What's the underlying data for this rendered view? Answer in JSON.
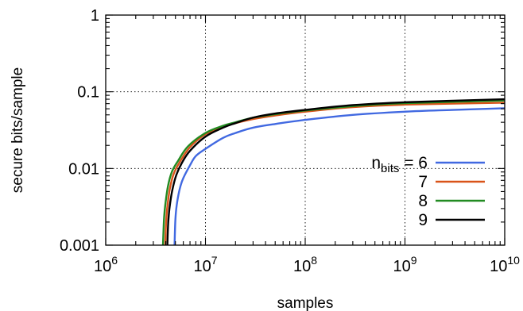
{
  "chart_data": {
    "type": "line",
    "title": "",
    "xlabel": "samples",
    "ylabel": "secure bits/sample",
    "xscale": "log",
    "yscale": "log",
    "xlim": [
      1000000,
      10000000000
    ],
    "ylim": [
      0.001,
      1
    ],
    "grid": true,
    "legend_position": "center-right",
    "legend_title": {
      "base": "n",
      "sub": "bits",
      "suffix": " = "
    },
    "x_ticks": [
      {
        "value": 1000000,
        "base": "10",
        "exp": "6"
      },
      {
        "value": 10000000,
        "base": "10",
        "exp": "7"
      },
      {
        "value": 100000000,
        "base": "10",
        "exp": "8"
      },
      {
        "value": 1000000000,
        "base": "10",
        "exp": "9"
      },
      {
        "value": 10000000000,
        "base": "10",
        "exp": "10"
      }
    ],
    "y_ticks": [
      {
        "value": 0.001,
        "label": "0.001"
      },
      {
        "value": 0.01,
        "label": "0.01"
      },
      {
        "value": 0.1,
        "label": "0.1"
      },
      {
        "value": 1,
        "label": "1"
      }
    ],
    "series": [
      {
        "name": "6",
        "color": "#4169e1",
        "x": [
          4900000,
          4950000,
          5000000,
          5100000,
          5300000,
          5600000,
          6000000,
          7000000,
          8000000,
          10000000,
          15000000,
          20000000,
          30000000,
          50000000,
          100000000,
          300000000,
          1000000000,
          3000000000,
          10000000000
        ],
        "y": [
          0.001,
          0.0016,
          0.0022,
          0.003,
          0.0042,
          0.0058,
          0.0075,
          0.011,
          0.0145,
          0.018,
          0.025,
          0.029,
          0.034,
          0.038,
          0.043,
          0.05,
          0.055,
          0.058,
          0.061
        ]
      },
      {
        "name": "7",
        "color": "#d95319",
        "x": [
          3950000,
          4000000,
          4050000,
          4150000,
          4400000,
          4800000,
          5500000,
          7000000,
          10000000,
          15000000,
          20000000,
          30000000,
          50000000,
          100000000,
          300000000,
          1000000000,
          10000000000
        ],
        "y": [
          0.001,
          0.0016,
          0.0022,
          0.0032,
          0.0055,
          0.0085,
          0.012,
          0.019,
          0.028,
          0.035,
          0.039,
          0.044,
          0.049,
          0.055,
          0.063,
          0.068,
          0.072
        ]
      },
      {
        "name": "8",
        "color": "#228b22",
        "x": [
          3750000,
          3800000,
          3850000,
          3950000,
          4200000,
          4600000,
          5300000,
          6700000,
          10000000,
          15000000,
          20000000,
          30000000,
          50000000,
          100000000,
          300000000,
          1000000000,
          10000000000
        ],
        "y": [
          0.001,
          0.0016,
          0.0023,
          0.0033,
          0.0058,
          0.009,
          0.0125,
          0.0195,
          0.029,
          0.036,
          0.04,
          0.046,
          0.051,
          0.057,
          0.065,
          0.071,
          0.077
        ]
      },
      {
        "name": "9",
        "color": "#000000",
        "x": [
          4150000,
          4200000,
          4260000,
          4380000,
          4650000,
          5100000,
          5800000,
          7000000,
          10000000,
          15000000,
          20000000,
          30000000,
          50000000,
          100000000,
          300000000,
          1000000000,
          10000000000
        ],
        "y": [
          0.001,
          0.0016,
          0.0022,
          0.0032,
          0.0052,
          0.0082,
          0.0118,
          0.017,
          0.026,
          0.034,
          0.039,
          0.046,
          0.052,
          0.058,
          0.067,
          0.073,
          0.08
        ]
      }
    ]
  }
}
